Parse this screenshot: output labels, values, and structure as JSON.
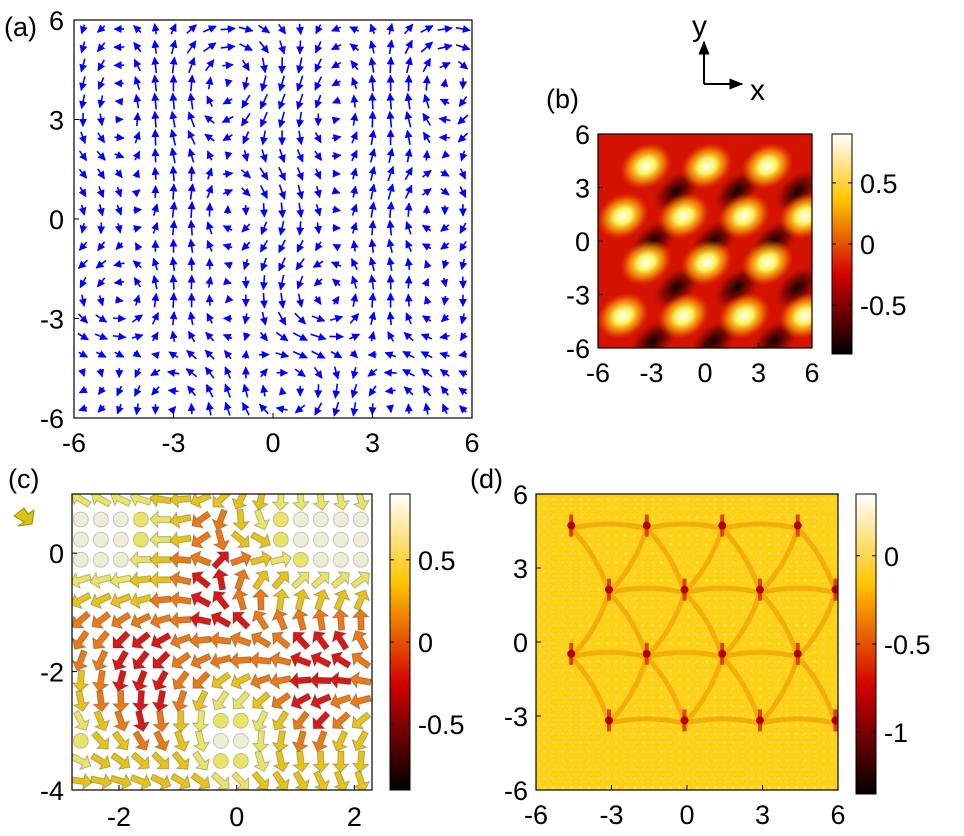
{
  "figure": {
    "panel_labels": [
      "(a)",
      "(b)",
      "(c)",
      "(d)"
    ],
    "axes_glyph": {
      "x_label": "x",
      "y_label": "y"
    }
  },
  "chart_data": [
    {
      "panel": "(a)",
      "type": "scatter",
      "description_kind": "vector-field",
      "title": "",
      "xlabel": "",
      "ylabel": "",
      "xlim": [
        -6,
        6
      ],
      "ylim": [
        -6,
        6
      ],
      "xticks": [
        -6,
        -3,
        0,
        3,
        6
      ],
      "yticks": [
        -6,
        -3,
        0,
        3,
        6
      ],
      "grid_n": 22,
      "vortex_centers": [
        [
          -4.6,
          4.6
        ],
        [
          -1.2,
          4.6
        ],
        [
          2.2,
          4.6
        ],
        [
          5.4,
          4.6
        ],
        [
          -4.6,
          3.0
        ],
        [
          -1.8,
          3.0
        ],
        [
          1.8,
          3.0
        ],
        [
          5.2,
          3.0
        ],
        [
          -4.0,
          0.4
        ],
        [
          -1.2,
          0.4
        ],
        [
          2.0,
          0.4
        ],
        [
          4.8,
          0.4
        ],
        [
          -4.6,
          -2.4
        ],
        [
          -1.4,
          -2.4
        ],
        [
          1.6,
          -2.4
        ],
        [
          4.8,
          -2.4
        ],
        [
          -3.0,
          -5.4
        ],
        [
          0.4,
          -5.4
        ],
        [
          3.6,
          -5.4
        ]
      ],
      "arrow_color": "#0000ff",
      "grid": false
    },
    {
      "panel": "(b)",
      "type": "heatmap",
      "title": "",
      "xlabel": "",
      "ylabel": "",
      "xlim": [
        -6,
        6
      ],
      "ylim": [
        -6,
        6
      ],
      "xticks": [
        -6,
        -3,
        0,
        3,
        6
      ],
      "yticks": [
        -6,
        -3,
        0,
        3,
        6
      ],
      "colorbar_ticks": [
        0.5,
        0,
        -0.5
      ],
      "colorbar_range": [
        -0.9,
        0.9
      ],
      "colormap": "hot",
      "spot_centers": [
        [
          -3.3,
          4.2
        ],
        [
          0.1,
          4.2
        ],
        [
          3.5,
          4.2
        ],
        [
          -4.6,
          1.4
        ],
        [
          -1.2,
          1.4
        ],
        [
          2.2,
          1.4
        ],
        [
          5.6,
          1.4
        ],
        [
          -3.3,
          -1.2
        ],
        [
          0.1,
          -1.2
        ],
        [
          3.5,
          -1.2
        ],
        [
          -4.6,
          -4.2
        ],
        [
          -1.2,
          -4.2
        ],
        [
          2.2,
          -4.2
        ],
        [
          5.6,
          -4.2
        ]
      ],
      "grid": false
    },
    {
      "panel": "(c)",
      "type": "scatter",
      "description_kind": "3d-arrow-field",
      "title": "",
      "xlabel": "",
      "ylabel": "",
      "xlim": [
        -2.8,
        2.3
      ],
      "ylim": [
        -4.0,
        1.0
      ],
      "xticks": [
        -2,
        0,
        2
      ],
      "yticks": [
        0,
        -2,
        -4
      ],
      "colorbar_ticks": [
        0.5,
        0,
        -0.5
      ],
      "colorbar_range": [
        -0.9,
        0.9
      ],
      "colormap": "hot",
      "core_centers": [
        [
          -0.4,
          0.0
        ],
        [
          -1.6,
          -2.8
        ],
        [
          1.4,
          -2.8
        ]
      ],
      "grid": false
    },
    {
      "panel": "(d)",
      "type": "heatmap",
      "title": "",
      "xlabel": "",
      "ylabel": "",
      "xlim": [
        -6,
        6
      ],
      "ylim": [
        -6,
        6
      ],
      "xticks": [
        -6,
        -3,
        0,
        3,
        6
      ],
      "yticks": [
        6,
        3,
        0,
        -3,
        -6
      ],
      "colorbar_ticks": [
        0,
        -0.5,
        -1
      ],
      "colorbar_range": [
        -1.35,
        0.35
      ],
      "colormap": "hot",
      "node_points": [
        [
          -4.6,
          4.6
        ],
        [
          -1.6,
          4.6
        ],
        [
          1.4,
          4.6
        ],
        [
          4.4,
          4.6
        ],
        [
          -3.1,
          2.0
        ],
        [
          -0.1,
          2.0
        ],
        [
          2.9,
          2.0
        ],
        [
          5.9,
          2.0
        ],
        [
          -4.6,
          -0.6
        ],
        [
          -1.6,
          -0.6
        ],
        [
          1.4,
          -0.6
        ],
        [
          4.4,
          -0.6
        ],
        [
          -3.1,
          -3.3
        ],
        [
          -0.1,
          -3.3
        ],
        [
          2.9,
          -3.3
        ],
        [
          5.9,
          -3.3
        ]
      ],
      "grid": false
    }
  ]
}
